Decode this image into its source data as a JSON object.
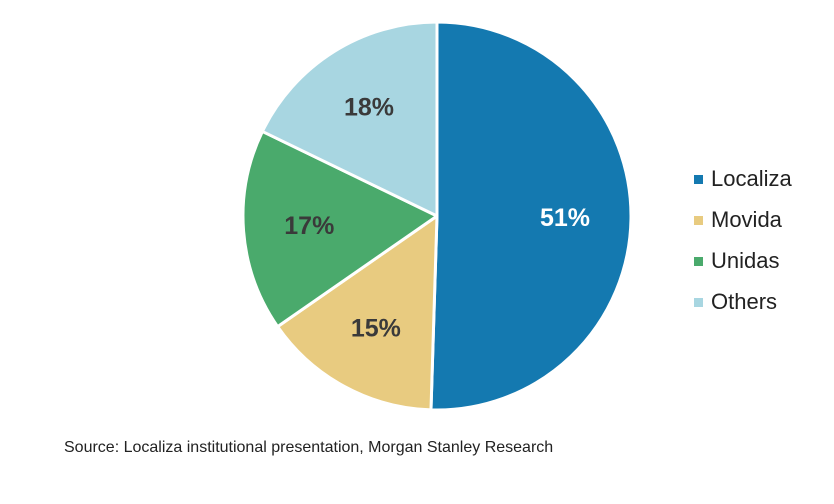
{
  "chart_data": {
    "type": "pie",
    "title": "",
    "slices": [
      {
        "name": "Localiza",
        "value": 51,
        "label": "51%",
        "color": "#1479b0",
        "label_color": "#ffffff"
      },
      {
        "name": "Movida",
        "value": 15,
        "label": "15%",
        "color": "#e8cb80",
        "label_color": "#3a3a3a"
      },
      {
        "name": "Unidas",
        "value": 17,
        "label": "17%",
        "color": "#4aaa6c",
        "label_color": "#3a3a3a"
      },
      {
        "name": "Others",
        "value": 18,
        "label": "18%",
        "color": "#a8d6e1",
        "label_color": "#3a3a3a"
      }
    ],
    "legend_placement": "right"
  },
  "source": "Source: Localiza institutional presentation, Morgan Stanley Research"
}
